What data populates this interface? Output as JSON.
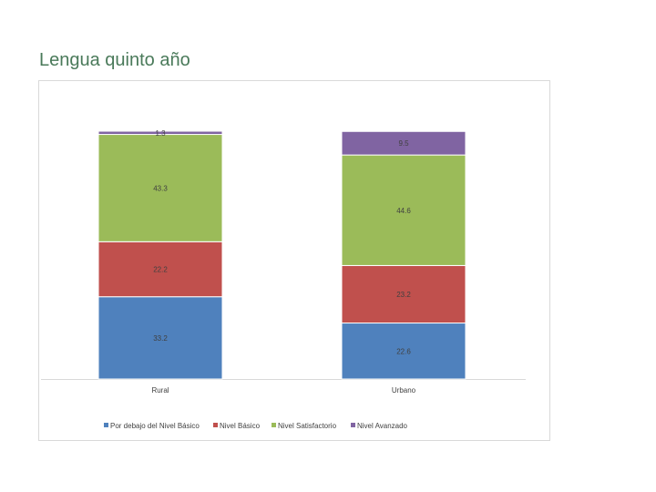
{
  "title": "Lengua quinto año",
  "chart_data": {
    "type": "bar",
    "stacked": true,
    "categories": [
      "Rural",
      "Urbano"
    ],
    "series": [
      {
        "name": "Por debajo del Nivel Básico",
        "values": [
          33.2,
          22.6
        ],
        "color": "#4f81bd"
      },
      {
        "name": "Nivel Básico",
        "values": [
          22.2,
          23.2
        ],
        "color": "#c0504d"
      },
      {
        "name": "Nivel Satisfactorio",
        "values": [
          43.3,
          44.6
        ],
        "color": "#9bbb59"
      },
      {
        "name": "Nivel Avanzado",
        "values": [
          1.3,
          9.5
        ],
        "color": "#8064a2"
      }
    ],
    "data_labels": [
      [
        "33.2",
        "22.6"
      ],
      [
        "22.2",
        "23.2"
      ],
      [
        "43.3",
        "44.6"
      ],
      [
        "1.3",
        "9.5"
      ]
    ],
    "ylim": [
      0,
      100
    ],
    "grid": false,
    "legend": "bottom"
  }
}
